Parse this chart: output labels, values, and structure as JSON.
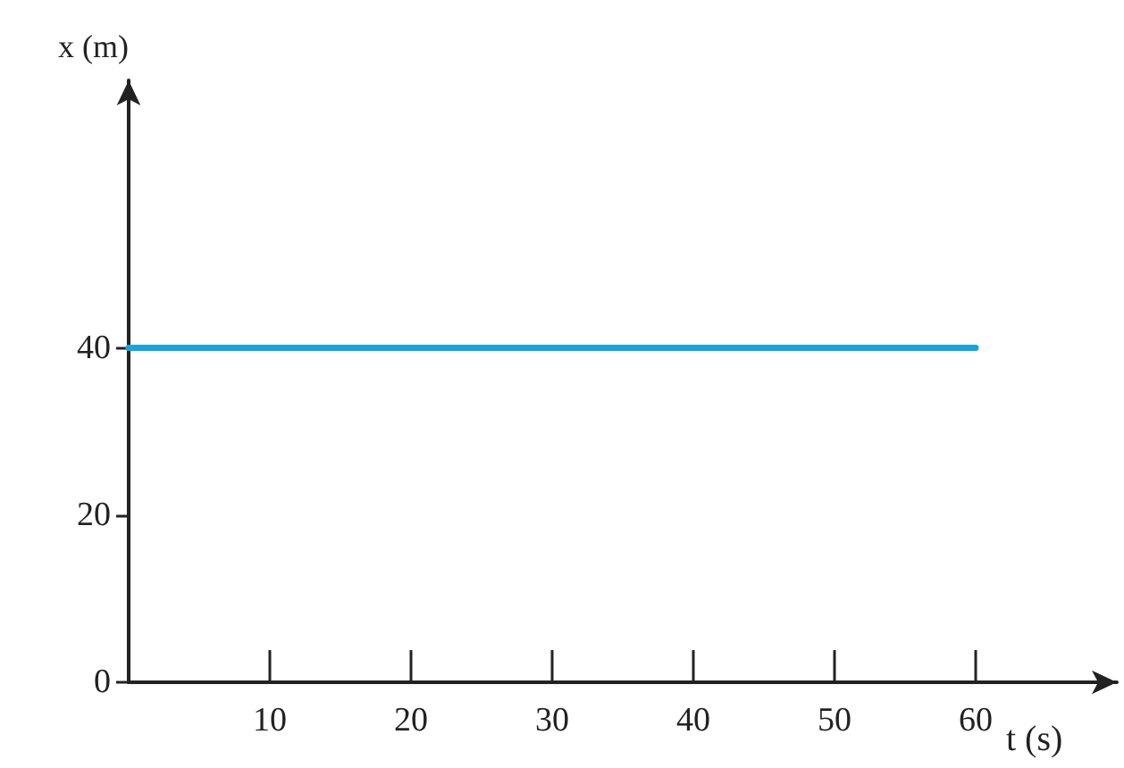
{
  "chart_data": {
    "type": "line",
    "xlabel": "t (s)",
    "ylabel": "x (m)",
    "x": [
      0,
      60
    ],
    "series": [
      {
        "color": "#1aa3dc",
        "values": [
          40,
          40
        ]
      }
    ],
    "xlim": [
      0,
      70
    ],
    "xticks": [
      10,
      20,
      30,
      40,
      50,
      60
    ],
    "ylim": [
      0,
      72
    ],
    "yticks": [
      0,
      20,
      40
    ],
    "grid": false,
    "marker": "none",
    "line_style": "solid"
  }
}
